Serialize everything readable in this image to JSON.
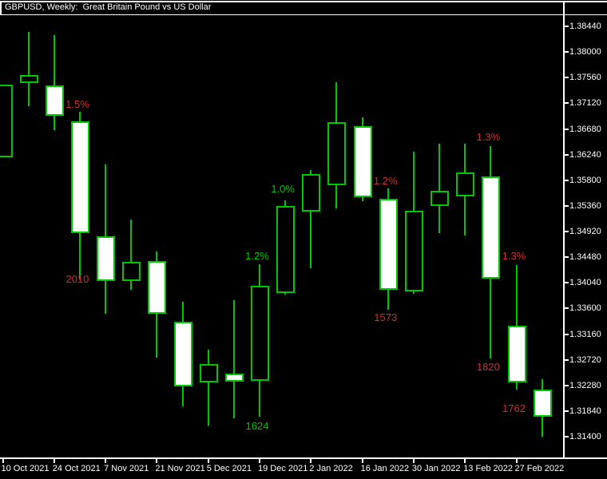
{
  "title": "GBPUSD, Weekly:  Great Britain Pound vs US Dollar",
  "colors": {
    "background": "#000000",
    "frame": "#ffffff",
    "axis_text": "#ffffff",
    "candle_outline": "#00c800",
    "bull_fill": "#000000",
    "bear_fill": "#ffffff",
    "label_up": "#00c800",
    "label_down": "#d22f2f"
  },
  "chart_data": {
    "type": "candlestick",
    "symbol": "GBPUSD",
    "timeframe": "Weekly",
    "description": "Great Britain Pound vs US Dollar",
    "y_axis": {
      "max": 1.3844,
      "min": 1.314,
      "step": 0.0044,
      "tick_labels": [
        "1.38440",
        "1.38000",
        "1.37560",
        "1.37120",
        "1.36680",
        "1.36240",
        "1.35800",
        "1.35360",
        "1.34920",
        "1.34480",
        "1.34040",
        "1.33600",
        "1.33160",
        "1.32720",
        "1.32280",
        "1.31840",
        "1.31400"
      ]
    },
    "x_axis": {
      "tick_labels": [
        "10 Oct 2021",
        "24 Oct 2021",
        "7 Nov 2021",
        "21 Nov 2021",
        "5 Dec 2021",
        "19 Dec 2021",
        "2 Jan 2022",
        "16 Jan 2022",
        "30 Jan 2022",
        "13 Feb 2022",
        "27 Feb 2022"
      ],
      "candles_per_tick": 2
    },
    "candles": [
      {
        "dir": "up",
        "o": 1.3619,
        "h": 1.3744,
        "l": 1.3619,
        "c": 1.3744
      },
      {
        "dir": "up",
        "o": 1.37468,
        "h": 1.38344,
        "l": 1.3707,
        "c": 1.37604
      },
      {
        "dir": "down",
        "o": 1.37426,
        "h": 1.38289,
        "l": 1.36659,
        "c": 1.36906
      },
      {
        "dir": "down",
        "o": 1.3681,
        "h": 1.36975,
        "l": 1.34098,
        "c": 1.34893
      },
      {
        "dir": "down",
        "o": 1.34838,
        "h": 1.36071,
        "l": 1.3351,
        "c": 1.34071
      },
      {
        "dir": "up",
        "o": 1.34071,
        "h": 1.35126,
        "l": 1.3392,
        "c": 1.344
      },
      {
        "dir": "down",
        "o": 1.34414,
        "h": 1.34578,
        "l": 1.32757,
        "c": 1.3351
      },
      {
        "dir": "down",
        "o": 1.33373,
        "h": 1.33716,
        "l": 1.31921,
        "c": 1.32264
      },
      {
        "dir": "up",
        "o": 1.32332,
        "h": 1.32893,
        "l": 1.31592,
        "c": 1.32647
      },
      {
        "dir": "down",
        "o": 1.32483,
        "h": 1.33743,
        "l": 1.31715,
        "c": 1.32346
      },
      {
        "dir": "up",
        "o": 1.32359,
        "h": 1.34359,
        "l": 1.31743,
        "c": 1.33989
      },
      {
        "dir": "up",
        "o": 1.33865,
        "h": 1.35454,
        "l": 1.33838,
        "c": 1.35358
      },
      {
        "dir": "up",
        "o": 1.35262,
        "h": 1.35975,
        "l": 1.3429,
        "c": 1.35906
      },
      {
        "dir": "up",
        "o": 1.35714,
        "h": 1.37481,
        "l": 1.35317,
        "c": 1.36796
      },
      {
        "dir": "down",
        "o": 1.36728,
        "h": 1.36879,
        "l": 1.3544,
        "c": 1.35509
      },
      {
        "dir": "down",
        "o": 1.35481,
        "h": 1.35659,
        "l": 1.33578,
        "c": 1.3392
      },
      {
        "dir": "up",
        "o": 1.33893,
        "h": 1.3629,
        "l": 1.33852,
        "c": 1.35276
      },
      {
        "dir": "up",
        "o": 1.35358,
        "h": 1.36427,
        "l": 1.34893,
        "c": 1.35618
      },
      {
        "dir": "up",
        "o": 1.35522,
        "h": 1.36427,
        "l": 1.34852,
        "c": 1.35933
      },
      {
        "dir": "down",
        "o": 1.35865,
        "h": 1.36386,
        "l": 1.32743,
        "c": 1.34112
      },
      {
        "dir": "down",
        "o": 1.33304,
        "h": 1.34345,
        "l": 1.32209,
        "c": 1.32332
      },
      {
        "dir": "down",
        "o": 1.32209,
        "h": 1.32387,
        "l": 1.314,
        "c": 1.31743
      }
    ],
    "annotations": [
      {
        "text": "1.5%",
        "tone": "down",
        "candle": 3,
        "side": "above",
        "gap": 3
      },
      {
        "text": "2010",
        "tone": "down",
        "candle": 3,
        "side": "below",
        "gap": -7
      },
      {
        "text": "1.2%",
        "tone": "up",
        "candle": 10,
        "side": "above",
        "gap": 4
      },
      {
        "text": "1624",
        "tone": "up",
        "candle": 10,
        "side": "below",
        "gap": 5
      },
      {
        "text": "1.0%",
        "tone": "up",
        "candle": 11,
        "side": "above",
        "gap": 8
      },
      {
        "text": "1.2%",
        "tone": "down",
        "candle": 15,
        "side": "above",
        "gap": 3
      },
      {
        "text": "1573",
        "tone": "down",
        "candle": 15,
        "side": "below",
        "gap": 3
      },
      {
        "text": "1.3%",
        "tone": "down",
        "candle": 19,
        "side": "above",
        "gap": 5
      },
      {
        "text": "1820",
        "tone": "down",
        "candle": 19,
        "side": "below",
        "gap": 4
      },
      {
        "text": "1.3%",
        "tone": "down",
        "candle": 20,
        "side": "above",
        "gap": 5
      },
      {
        "text": "1762",
        "tone": "down",
        "candle": 20,
        "side": "below",
        "gap": 17
      }
    ]
  }
}
